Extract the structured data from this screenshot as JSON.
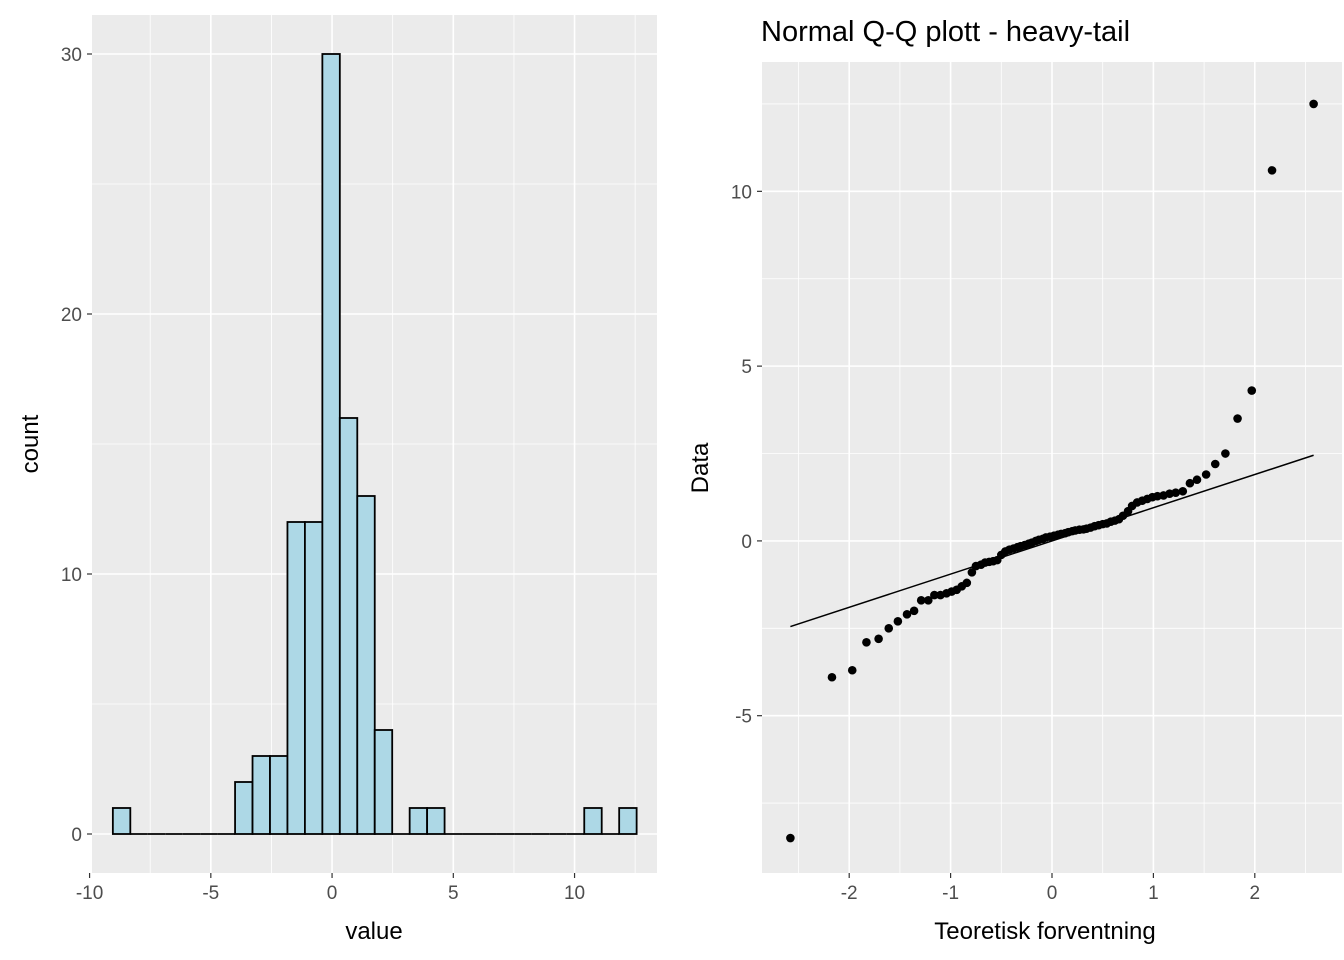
{
  "chart_data": [
    {
      "type": "bar",
      "subtype": "histogram",
      "title": "",
      "xlabel": "value",
      "ylabel": "count",
      "bin_width": 0.72,
      "bin_centers": [
        -8.68,
        -7.96,
        -7.24,
        -6.52,
        -5.8,
        -5.08,
        -4.36,
        -3.64,
        -2.92,
        -2.2,
        -1.48,
        -0.76,
        -0.04,
        0.68,
        1.4,
        2.12,
        2.84,
        3.56,
        4.28,
        5.0,
        5.72,
        6.44,
        7.16,
        7.88,
        8.6,
        9.32,
        10.04,
        10.76,
        11.48,
        12.2
      ],
      "counts": [
        1,
        0,
        0,
        0,
        0,
        0,
        0,
        2,
        3,
        3,
        12,
        12,
        30,
        16,
        13,
        4,
        0,
        1,
        1,
        0,
        0,
        0,
        0,
        0,
        0,
        0,
        0,
        1,
        0,
        1
      ],
      "xlim": [
        -9.9,
        13.4
      ],
      "ylim": [
        -1.5,
        31.5
      ],
      "xticks": [
        -10,
        -5,
        0,
        5,
        10
      ],
      "xtick_labels": [
        "-10",
        "-5",
        "0",
        "5",
        "10"
      ],
      "yticks": [
        0,
        10,
        20,
        30
      ],
      "ytick_labels": [
        "0",
        "10",
        "20",
        "30"
      ],
      "fill_color": "#add8e6",
      "edge_color": "#000000",
      "panel_background": "#ebebeb",
      "grid": true
    },
    {
      "type": "scatter",
      "subtype": "qq",
      "title": "Normal Q-Q plott - heavy-tail",
      "xlabel": "Teoretisk forventning",
      "ylabel": "Data",
      "xlim": [
        -2.86,
        2.86
      ],
      "ylim": [
        -9.5,
        13.7
      ],
      "xticks": [
        -2,
        -1,
        0,
        1,
        2
      ],
      "xtick_labels": [
        "-2",
        "-1",
        "0",
        "1",
        "2"
      ],
      "yticks": [
        -5,
        0,
        5,
        10
      ],
      "ytick_labels": [
        "-5",
        "0",
        "5",
        "10"
      ],
      "reference_line": {
        "x": [
          -2.58,
          2.58
        ],
        "y": [
          -2.45,
          2.45
        ]
      },
      "points": {
        "x": [
          -2.58,
          -2.17,
          -1.97,
          -1.83,
          -1.71,
          -1.61,
          -1.52,
          -1.43,
          -1.36,
          -1.29,
          -1.22,
          -1.16,
          -1.1,
          -1.04,
          -0.99,
          -0.94,
          -0.89,
          -0.84,
          -0.79,
          -0.75,
          -0.7,
          -0.66,
          -0.62,
          -0.58,
          -0.54,
          -0.5,
          -0.46,
          -0.42,
          -0.38,
          -0.34,
          -0.31,
          -0.27,
          -0.23,
          -0.2,
          -0.16,
          -0.13,
          -0.09,
          -0.06,
          -0.02,
          0.02,
          0.06,
          0.09,
          0.13,
          0.16,
          0.2,
          0.23,
          0.27,
          0.31,
          0.34,
          0.38,
          0.42,
          0.46,
          0.5,
          0.54,
          0.58,
          0.62,
          0.66,
          0.7,
          0.75,
          0.79,
          0.84,
          0.89,
          0.94,
          0.99,
          1.04,
          1.1,
          1.16,
          1.22,
          1.29,
          1.36,
          1.43,
          1.52,
          1.61,
          1.71,
          1.83,
          1.97,
          2.17,
          2.58
        ],
        "y": [
          -8.5,
          -3.9,
          -3.7,
          -2.9,
          -2.8,
          -2.5,
          -2.3,
          -2.1,
          -2.0,
          -1.7,
          -1.7,
          -1.55,
          -1.55,
          -1.5,
          -1.45,
          -1.4,
          -1.3,
          -1.2,
          -0.9,
          -0.72,
          -0.68,
          -0.62,
          -0.6,
          -0.58,
          -0.55,
          -0.4,
          -0.3,
          -0.25,
          -0.22,
          -0.18,
          -0.15,
          -0.12,
          -0.08,
          -0.05,
          0.0,
          0.03,
          0.06,
          0.1,
          0.12,
          0.15,
          0.18,
          0.2,
          0.22,
          0.25,
          0.28,
          0.3,
          0.32,
          0.33,
          0.35,
          0.38,
          0.42,
          0.45,
          0.48,
          0.5,
          0.55,
          0.58,
          0.62,
          0.72,
          0.85,
          1.0,
          1.1,
          1.15,
          1.2,
          1.25,
          1.28,
          1.3,
          1.35,
          1.38,
          1.42,
          1.65,
          1.75,
          1.9,
          2.2,
          2.5,
          3.5,
          4.3,
          10.6,
          12.5
        ]
      },
      "point_color": "#000000",
      "line_color": "#000000",
      "panel_background": "#ebebeb",
      "grid": true
    }
  ]
}
